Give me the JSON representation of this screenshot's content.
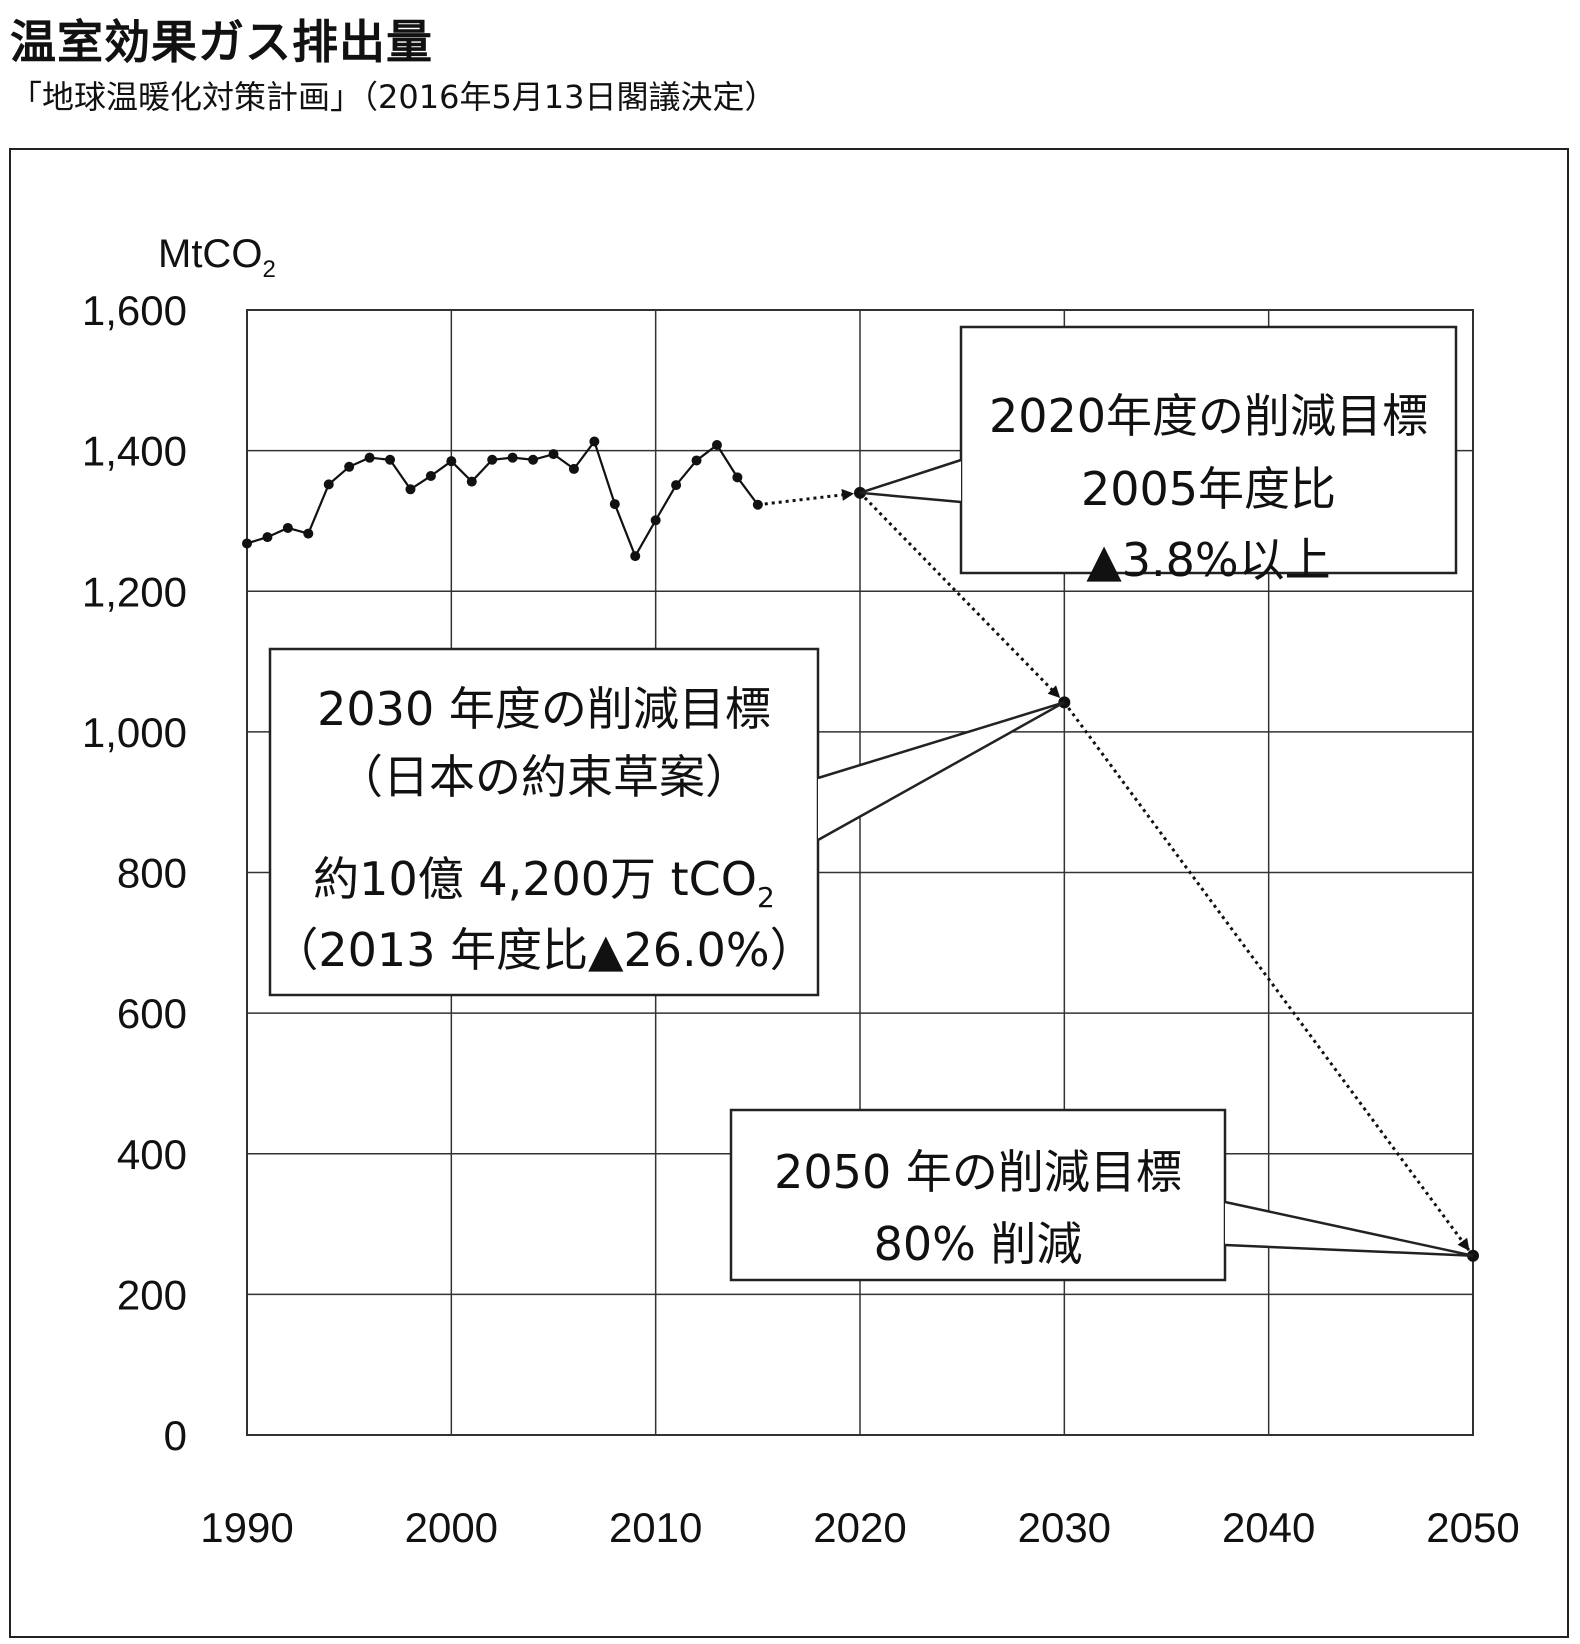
{
  "header": {
    "title": "温室効果ガス排出量",
    "subtitle": "「地球温暖化対策計画」（2016年5月13日閣議決定）"
  },
  "chart_data": {
    "type": "line",
    "ylabel": "MtCO",
    "ylabel_sub": "2",
    "x_ticks": [
      1990,
      2000,
      2010,
      2020,
      2030,
      2040,
      2050
    ],
    "y_ticks": [
      "0",
      "200",
      "400",
      "600",
      "800",
      "1,000",
      "1,200",
      "1,400",
      "1,600"
    ],
    "xlim": [
      1990,
      2050
    ],
    "ylim": [
      0,
      1600
    ],
    "grid": true,
    "series": [
      {
        "kind": "actual",
        "x": [
          1990,
          1991,
          1992,
          1993,
          1994,
          1995,
          1996,
          1997,
          1998,
          1999,
          2000,
          2001,
          2002,
          2003,
          2004,
          2005,
          2006,
          2007,
          2008,
          2009,
          2010,
          2011,
          2012,
          2013,
          2014,
          2015
        ],
        "y": [
          1268,
          1277,
          1290,
          1282,
          1352,
          1377,
          1390,
          1387,
          1345,
          1364,
          1385,
          1356,
          1387,
          1390,
          1387,
          1395,
          1374,
          1413,
          1324,
          1250,
          1301,
          1351,
          1386,
          1408,
          1362,
          1323
        ]
      },
      {
        "kind": "target",
        "x": [
          2015,
          2020,
          2030,
          2050
        ],
        "y": [
          1323,
          1340,
          1042,
          255
        ]
      }
    ],
    "annotations": [
      {
        "id": "target-2020",
        "lines": [
          "2020年度の削減目標",
          "2005年度比",
          "▲3.8%以上"
        ]
      },
      {
        "id": "target-2030",
        "lines": [
          "2030 年度の削減目標",
          "（日本の約束草案）",
          "約10億 4,200万 tCO",
          "（2013 年度比▲26.0%）"
        ],
        "sub": "2"
      },
      {
        "id": "target-2050",
        "lines": [
          "2050 年の削減目標",
          "80% 削減"
        ]
      }
    ]
  }
}
